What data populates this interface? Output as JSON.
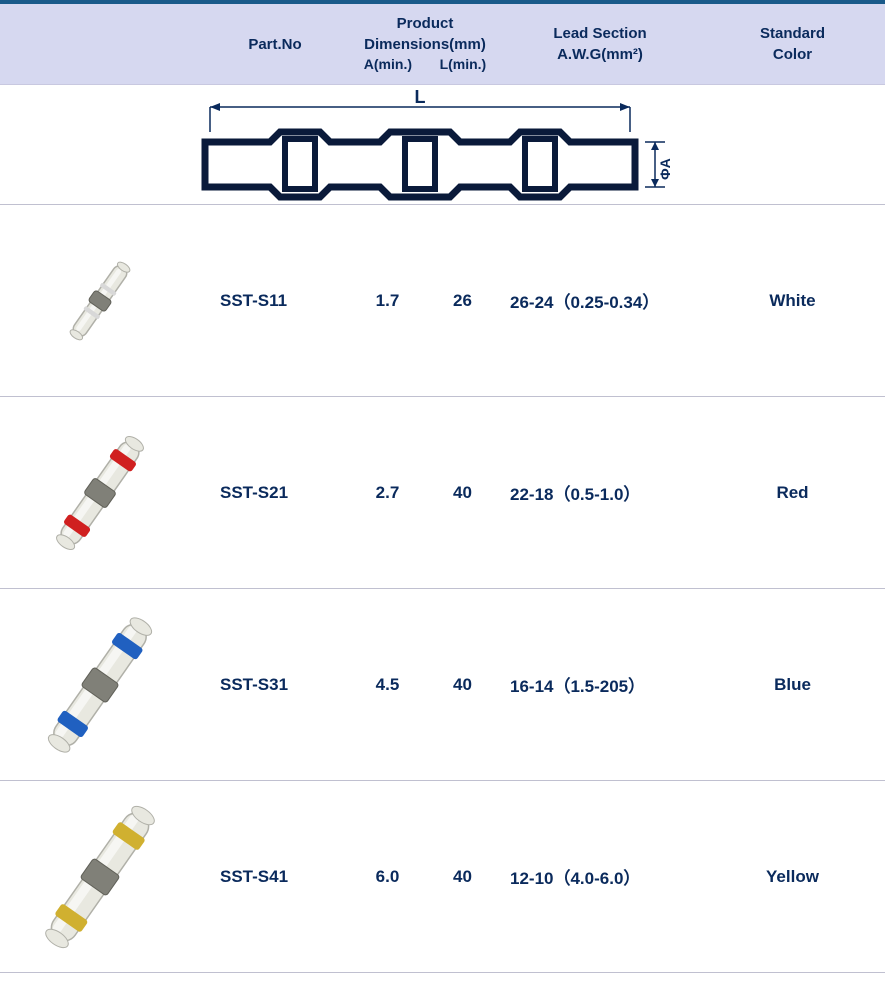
{
  "header": {
    "part_no": "Part.No",
    "dimensions_title": "Product Dimensions(mm)",
    "dim_a": "A(min.)",
    "dim_l": "L(min.)",
    "lead_title": "Lead Section",
    "lead_sub": "A.W.G(mm²)",
    "std_title": "Standard",
    "std_sub": "Color"
  },
  "diagram": {
    "label_L": "L",
    "label_A": "ΦA",
    "stroke_color": "#0a2a5c",
    "body_fill": "#0a1a3a"
  },
  "colors": {
    "header_bg": "#d6d8f0",
    "header_border_top": "#1a5a8a",
    "row_border": "#c0c0d0",
    "text": "#0a2a5c",
    "white_ring": "#d8d8d8",
    "red_ring": "#d02020",
    "blue_ring": "#2060c0",
    "yellow_ring": "#d0b030",
    "solder_ring": "#808078",
    "tube_body": "#e8e8e0",
    "tube_outline": "#b0b0a8"
  },
  "rows": [
    {
      "part_no": "SST-S11",
      "a_min": "1.7",
      "l_min": "26",
      "lead": "26-24（0.25-0.34）",
      "std_color": "White",
      "ring_color_key": "white_ring",
      "scale": 0.55,
      "has_side_rings": false
    },
    {
      "part_no": "SST-S21",
      "a_min": "2.7",
      "l_min": "40",
      "lead": "22-18（0.5-1.0）",
      "std_color": "Red",
      "ring_color_key": "red_ring",
      "scale": 0.8,
      "has_side_rings": true
    },
    {
      "part_no": "SST-S31",
      "a_min": "4.5",
      "l_min": "40",
      "lead": "16-14（1.5-205）",
      "std_color": "Blue",
      "ring_color_key": "blue_ring",
      "scale": 0.95,
      "has_side_rings": true
    },
    {
      "part_no": "SST-S41",
      "a_min": "6.0",
      "l_min": "40",
      "lead": "12-10（4.0-6.0）",
      "std_color": "Yellow",
      "ring_color_key": "yellow_ring",
      "scale": 1.0,
      "has_side_rings": true
    }
  ]
}
